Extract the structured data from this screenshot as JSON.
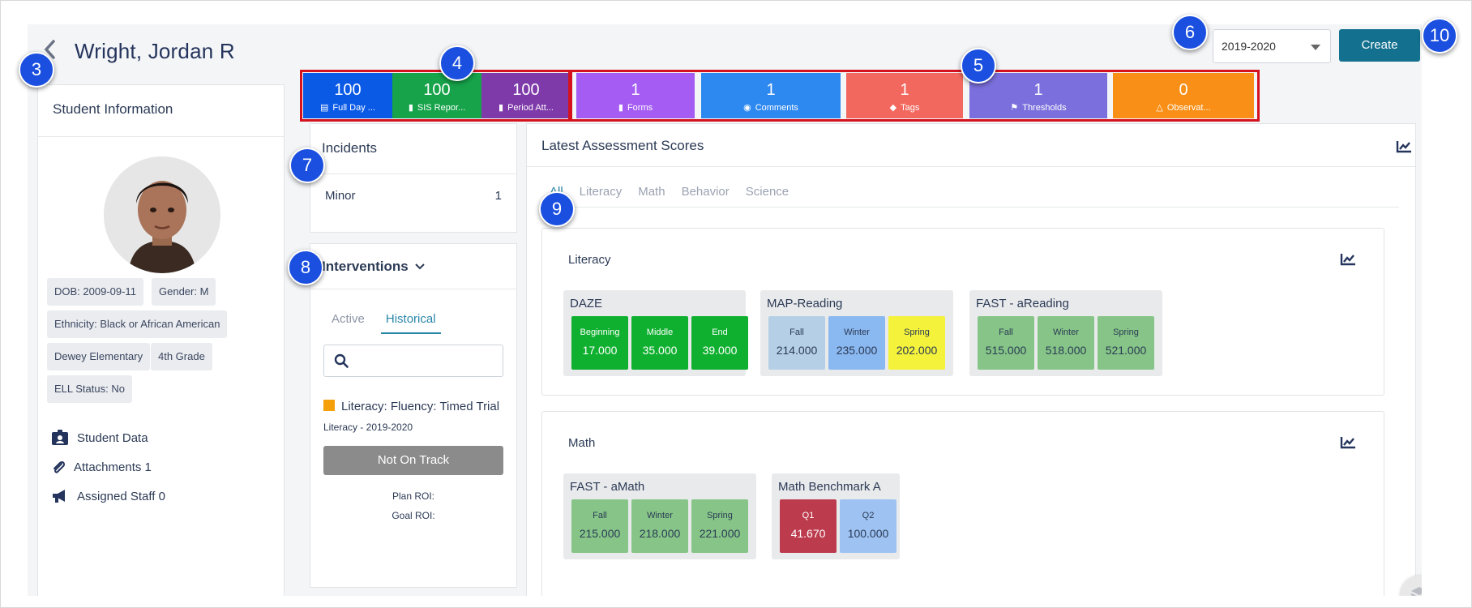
{
  "header": {
    "student_name": "Wright, Jordan R",
    "year": "2019-2020",
    "create_label": "Create"
  },
  "student_info": {
    "title": "Student Information",
    "chips": [
      "DOB: 2009-09-11",
      "Gender: M",
      "Ethnicity: Black or African American",
      "Dewey Elementary",
      "4th Grade",
      "ELL Status: No"
    ],
    "links": [
      "Student Data",
      "Attachments 1",
      "Assigned Staff 0"
    ]
  },
  "stats": [
    {
      "value": "100",
      "label": "Full Day ...",
      "color": "#0b5ae6",
      "icon": "attendance-icon"
    },
    {
      "value": "100",
      "label": "SIS Repor...",
      "color": "#16a34a",
      "icon": "clipboard-icon"
    },
    {
      "value": "100",
      "label": "Period Att...",
      "color": "#7e3aa9",
      "icon": "clipboard-icon"
    },
    {
      "value": "1",
      "label": "Forms",
      "color": "#a45cf2",
      "icon": "clipboard-icon"
    },
    {
      "value": "1",
      "label": "Comments",
      "color": "#2d88f0",
      "icon": "comments-icon"
    },
    {
      "value": "1",
      "label": "Tags",
      "color": "#f2685f",
      "icon": "tags-icon"
    },
    {
      "value": "1",
      "label": "Thresholds",
      "color": "#7b6fdd",
      "icon": "flag-icon"
    },
    {
      "value": "0",
      "label": "Observat...",
      "color": "#f98f16",
      "icon": "observation-icon"
    }
  ],
  "incidents": {
    "title": "Incidents",
    "rows": [
      {
        "label": "Minor",
        "count": "1"
      }
    ]
  },
  "interventions": {
    "title": "Interventions",
    "tabs": [
      "Active",
      "Historical"
    ],
    "item_title": "Literacy: Fluency: Timed Trial",
    "item_sub": "Literacy - 2019-2020",
    "status": "Not On Track",
    "plan_roi": "Plan ROI:",
    "goal_roi": "Goal ROI:"
  },
  "assessments": {
    "title": "Latest Assessment Scores",
    "tabs": [
      "All",
      "Literacy",
      "Math",
      "Behavior",
      "Science"
    ],
    "sections": [
      {
        "title": "Literacy",
        "groups": [
          {
            "name": "DAZE",
            "cells": [
              {
                "label": "Beginning",
                "value": "17.000",
                "color": "#0fb02f",
                "text": "#ffffff"
              },
              {
                "label": "Middle",
                "value": "35.000",
                "color": "#0fb02f",
                "text": "#ffffff"
              },
              {
                "label": "End",
                "value": "39.000",
                "color": "#0fb02f",
                "text": "#ffffff"
              }
            ]
          },
          {
            "name": "MAP-Reading",
            "cells": [
              {
                "label": "Fall",
                "value": "214.000",
                "color": "#b5d0e6",
                "text": "#2b3a55"
              },
              {
                "label": "Winter",
                "value": "235.000",
                "color": "#8ab8f0",
                "text": "#2b3a55"
              },
              {
                "label": "Spring",
                "value": "202.000",
                "color": "#f4f23a",
                "text": "#2b3a55"
              }
            ]
          },
          {
            "name": "FAST - aReading",
            "cells": [
              {
                "label": "Fall",
                "value": "515.000",
                "color": "#86c587",
                "text": "#2b3a55"
              },
              {
                "label": "Winter",
                "value": "518.000",
                "color": "#86c587",
                "text": "#2b3a55"
              },
              {
                "label": "Spring",
                "value": "521.000",
                "color": "#86c587",
                "text": "#2b3a55"
              }
            ]
          }
        ]
      },
      {
        "title": "Math",
        "groups": [
          {
            "name": "FAST - aMath",
            "cells": [
              {
                "label": "Fall",
                "value": "215.000",
                "color": "#86c587",
                "text": "#2b3a55"
              },
              {
                "label": "Winter",
                "value": "218.000",
                "color": "#86c587",
                "text": "#2b3a55"
              },
              {
                "label": "Spring",
                "value": "221.000",
                "color": "#86c587",
                "text": "#2b3a55"
              }
            ]
          },
          {
            "name": "Math Benchmark A",
            "cells": [
              {
                "label": "Q1",
                "value": "41.670",
                "color": "#bc3c4e",
                "text": "#ffffff"
              },
              {
                "label": "Q2",
                "value": "100.000",
                "color": "#9ec3f2",
                "text": "#2b3a55"
              }
            ]
          }
        ]
      }
    ]
  },
  "callouts": [
    "3",
    "4",
    "5",
    "6",
    "7",
    "8",
    "9",
    "10"
  ]
}
